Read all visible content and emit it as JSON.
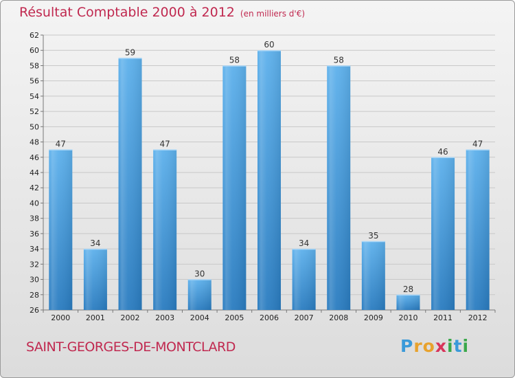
{
  "chart_data": {
    "type": "bar",
    "title": "Résultat Comptable 2000 à 2012",
    "subtitle": "(en milliers d'€)",
    "categories": [
      "2000",
      "2001",
      "2002",
      "2003",
      "2004",
      "2005",
      "2006",
      "2007",
      "2008",
      "2009",
      "2010",
      "2011",
      "2012"
    ],
    "values": [
      47,
      34,
      59,
      47,
      30,
      58,
      60,
      34,
      58,
      35,
      28,
      46,
      47
    ],
    "ylim": [
      26,
      62
    ],
    "yticks": [
      26,
      28,
      30,
      32,
      34,
      36,
      38,
      40,
      42,
      44,
      46,
      48,
      50,
      52,
      54,
      56,
      58,
      60,
      62
    ],
    "grid": true,
    "xlabel": "",
    "ylabel": ""
  },
  "commune": "SAINT-GEORGES-DE-MONTCLARD",
  "logo": {
    "letters": [
      "P",
      "r",
      "o",
      "x",
      "i",
      "t",
      "i"
    ],
    "colors": [
      "#3a9ad9",
      "#e8a22d",
      "#e8a22d",
      "#d8345a",
      "#3aa84a",
      "#3a9ad9",
      "#3aa84a"
    ]
  },
  "colors": {
    "bar": "#2e85c8",
    "bar_light": "#5aaee8",
    "accent": "#c0284f"
  }
}
